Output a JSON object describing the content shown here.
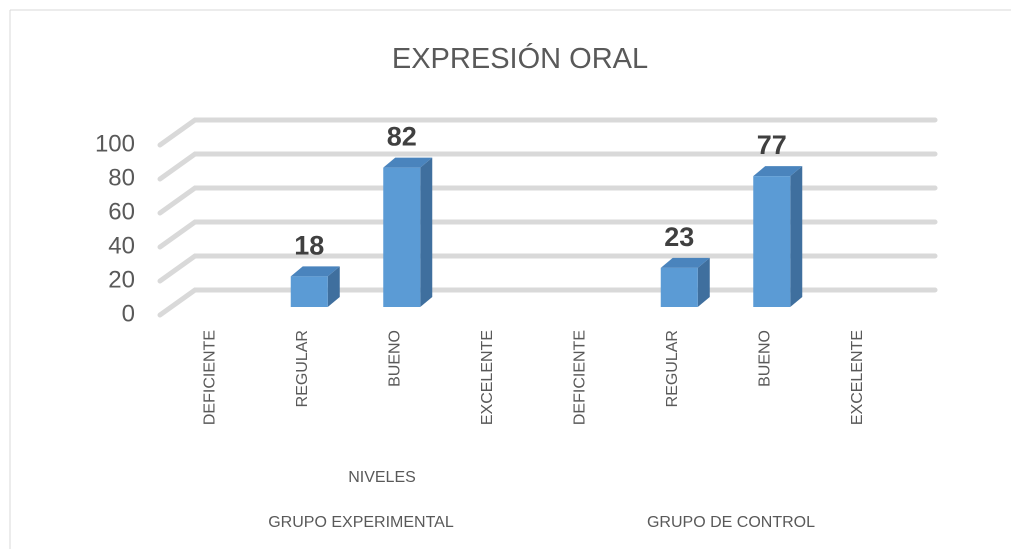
{
  "chart_data": {
    "type": "bar3d",
    "title": "EXPRESIÓN ORAL",
    "x_label": "NIVELES",
    "categories": [
      "DEFICIENTE",
      "REGULAR",
      "BUENO",
      "EXCELENTE",
      "DEFICIENTE",
      "REGULAR",
      "BUENO",
      "EXCELENTE"
    ],
    "groups": [
      "GRUPO EXPERIMENTAL",
      "GRUPO DE CONTROL"
    ],
    "values": [
      null,
      18,
      82,
      null,
      null,
      23,
      77,
      null
    ],
    "color": "#5b9bd5",
    "ylim": [
      0,
      100
    ],
    "yticks": [
      0,
      20,
      40,
      60,
      80,
      100
    ],
    "grid": true
  }
}
